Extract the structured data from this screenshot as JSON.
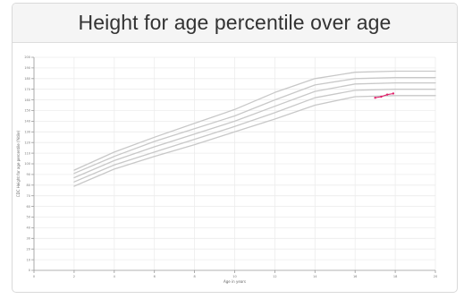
{
  "panel": {
    "title": "Height for age percentile over age"
  },
  "chart_data": {
    "type": "line",
    "title": "",
    "xlabel": "Age in years",
    "ylabel": "CDC Height for age percentile (%tile)",
    "xlim": [
      0,
      20
    ],
    "ylim": [
      0,
      200
    ],
    "x_ticks": [
      0,
      2,
      4,
      6,
      8,
      10,
      12,
      14,
      16,
      18,
      20
    ],
    "y_ticks": [
      0,
      10,
      20,
      30,
      40,
      50,
      60,
      70,
      80,
      90,
      100,
      110,
      120,
      130,
      140,
      150,
      160,
      170,
      180,
      190,
      200
    ],
    "grid": true,
    "legend": "none",
    "colors": {
      "percentile": "#c8c8c8",
      "patient": "#e0206a",
      "grid": "#ececec",
      "axis": "#9a9a9a"
    },
    "series": [
      {
        "x": [
          2,
          4,
          6,
          8,
          10,
          12,
          14,
          16,
          18,
          20
        ],
        "y": [
          94,
          111,
          125,
          138,
          151,
          167,
          180,
          186,
          187,
          187
        ]
      },
      {
        "x": [
          2,
          4,
          6,
          8,
          10,
          12,
          14,
          16,
          18,
          20
        ],
        "y": [
          91,
          107,
          121,
          133,
          145,
          160,
          174,
          180,
          181,
          181
        ]
      },
      {
        "x": [
          2,
          4,
          6,
          8,
          10,
          12,
          14,
          16,
          18,
          20
        ],
        "y": [
          87,
          103,
          116,
          128,
          140,
          154,
          168,
          175,
          176,
          176
        ]
      },
      {
        "x": [
          2,
          4,
          6,
          8,
          10,
          12,
          14,
          16,
          18,
          20
        ],
        "y": [
          83,
          99,
          111,
          123,
          135,
          148,
          162,
          169,
          170,
          170
        ]
      },
      {
        "x": [
          2,
          4,
          6,
          8,
          10,
          12,
          14,
          16,
          18,
          20
        ],
        "y": [
          79,
          95,
          107,
          118,
          130,
          142,
          155,
          163,
          164,
          164
        ]
      },
      {
        "x": [
          17,
          17.3,
          17.6,
          17.9
        ],
        "y": [
          162,
          163,
          165,
          166
        ]
      }
    ]
  }
}
